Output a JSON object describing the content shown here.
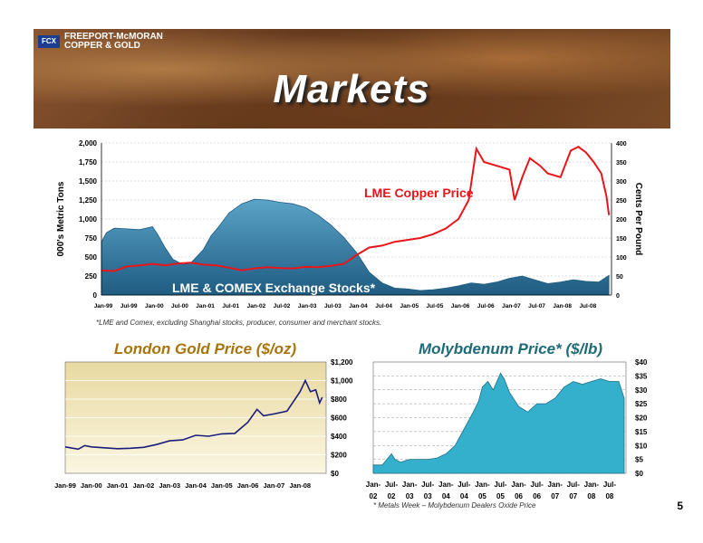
{
  "logo": {
    "mark": "FCX",
    "line1": "FREEPORT-McMORAN",
    "line2": "COPPER & GOLD"
  },
  "page_title": "Markets",
  "footnote_top": "*LME and Comex, excluding Shanghai stocks, producer, consumer and merchant stocks.",
  "footnote_moly": "* Metals Week – Molybdenum Dealers Oxide Price",
  "page_number": "5",
  "colors": {
    "stocks": "#1f5c82",
    "stocks_light": "#5ba3c8",
    "copper": "#e8151b",
    "gold_line": "#1c1c7a",
    "gold_bg_top": "#e8d9a0",
    "gold_bg_bottom": "#fbf6e2",
    "moly": "#34b0cc",
    "gold_title": "#a8740c",
    "moly_title": "#1e6b78"
  },
  "chart_data": [
    {
      "type": "area",
      "name": "copper_markets",
      "ylabel": "000's Metric Tons",
      "y2label": "Cents Per Pound",
      "ylim": [
        0,
        2000
      ],
      "y2lim": [
        0,
        400
      ],
      "y_ticks": [
        "0",
        "250",
        "500",
        "750",
        "1,000",
        "1,250",
        "1,500",
        "1,750",
        "2,000"
      ],
      "y2_ticks": [
        "0",
        "50",
        "100",
        "150",
        "200",
        "250",
        "300",
        "350",
        "400"
      ],
      "x_ticks": [
        "Jan-99",
        "Jul-99",
        "Jan-00",
        "Jul-00",
        "Jan-01",
        "Jul-01",
        "Jan-02",
        "Jul-02",
        "Jan-03",
        "Jul-03",
        "Jan-04",
        "Jul-04",
        "Jan-05",
        "Jul-05",
        "Jan-06",
        "Jul-06",
        "Jan-07",
        "Jul-07",
        "Jan-08",
        "Jul-08"
      ],
      "grid": true,
      "series": [
        {
          "name": "LME & COMEX Exchange Stocks*",
          "axis": "left",
          "type": "area",
          "x": [
            1999.0,
            1999.1,
            1999.25,
            1999.5,
            1999.75,
            2000.0,
            2000.1,
            2000.25,
            2000.4,
            2000.6,
            2000.75,
            2001.0,
            2001.15,
            2001.3,
            2001.5,
            2001.75,
            2002.0,
            2002.25,
            2002.5,
            2002.75,
            2003.0,
            2003.25,
            2003.5,
            2003.75,
            2004.0,
            2004.25,
            2004.5,
            2004.75,
            2005.0,
            2005.25,
            2005.5,
            2005.75,
            2006.0,
            2006.25,
            2006.5,
            2006.75,
            2007.0,
            2007.25,
            2007.5,
            2007.75,
            2008.0,
            2008.25,
            2008.5,
            2008.75,
            2008.95
          ],
          "values": [
            700,
            820,
            880,
            870,
            860,
            900,
            800,
            620,
            470,
            400,
            420,
            600,
            780,
            900,
            1080,
            1200,
            1260,
            1250,
            1220,
            1200,
            1150,
            1050,
            920,
            760,
            560,
            300,
            160,
            90,
            80,
            60,
            70,
            90,
            120,
            160,
            140,
            170,
            220,
            250,
            200,
            150,
            170,
            200,
            180,
            170,
            260
          ]
        },
        {
          "name": "LME Copper Price",
          "axis": "right",
          "type": "line",
          "x": [
            1999.0,
            1999.25,
            1999.5,
            1999.75,
            2000.0,
            2000.25,
            2000.5,
            2000.75,
            2001.0,
            2001.25,
            2001.5,
            2001.75,
            2002.0,
            2002.25,
            2002.5,
            2002.75,
            2003.0,
            2003.25,
            2003.5,
            2003.75,
            2004.0,
            2004.25,
            2004.5,
            2004.75,
            2005.0,
            2005.25,
            2005.5,
            2005.75,
            2006.0,
            2006.2,
            2006.35,
            2006.5,
            2006.75,
            2007.0,
            2007.1,
            2007.25,
            2007.4,
            2007.6,
            2007.75,
            2008.0,
            2008.2,
            2008.35,
            2008.5,
            2008.65,
            2008.8,
            2008.9,
            2008.95
          ],
          "values": [
            65,
            63,
            75,
            78,
            82,
            78,
            83,
            85,
            80,
            78,
            72,
            65,
            70,
            73,
            71,
            70,
            74,
            73,
            77,
            82,
            105,
            125,
            130,
            140,
            145,
            150,
            160,
            175,
            200,
            250,
            385,
            350,
            340,
            330,
            250,
            310,
            360,
            340,
            320,
            310,
            380,
            390,
            375,
            350,
            320,
            260,
            210
          ]
        }
      ],
      "annotations": [
        "LME Copper Price",
        "LME & COMEX Exchange Stocks*"
      ]
    },
    {
      "type": "line",
      "name": "gold",
      "title": "London Gold Price ($/oz)",
      "ylim": [
        0,
        1200
      ],
      "y_ticks": [
        "$0",
        "$200",
        "$400",
        "$600",
        "$800",
        "$1,000",
        "$1,200"
      ],
      "x_ticks": [
        "Jan-99",
        "Jan-00",
        "Jan-01",
        "Jan-02",
        "Jan-03",
        "Jan-04",
        "Jan-05",
        "Jan-06",
        "Jan-07",
        "Jan-08"
      ],
      "grid": true,
      "x": [
        1999.0,
        1999.5,
        1999.75,
        2000.0,
        2000.5,
        2001.0,
        2001.5,
        2002.0,
        2002.5,
        2003.0,
        2003.5,
        2004.0,
        2004.5,
        2005.0,
        2005.5,
        2006.0,
        2006.35,
        2006.6,
        2007.0,
        2007.5,
        2008.0,
        2008.2,
        2008.4,
        2008.6,
        2008.75,
        2008.85
      ],
      "values": [
        285,
        260,
        300,
        285,
        275,
        265,
        270,
        280,
        310,
        350,
        360,
        410,
        400,
        425,
        430,
        550,
        690,
        620,
        640,
        670,
        880,
        1000,
        880,
        900,
        760,
        820
      ]
    },
    {
      "type": "area",
      "name": "molybdenum",
      "title": "Molybdenum Price* ($/lb)",
      "ylim": [
        0,
        40
      ],
      "y_ticks": [
        "$0",
        "$5",
        "$10",
        "$15",
        "$20",
        "$25",
        "$30",
        "$35",
        "$40"
      ],
      "x_ticks": [
        "Jan-02",
        "Jul-02",
        "Jan-03",
        "Jul-03",
        "Jan-04",
        "Jul-04",
        "Jan-05",
        "Jul-05",
        "Jan-06",
        "Jul-06",
        "Jan-07",
        "Jul-07",
        "Jan-08",
        "Jul-08"
      ],
      "grid": true,
      "x": [
        2002.0,
        2002.25,
        2002.5,
        2002.6,
        2002.75,
        2003.0,
        2003.25,
        2003.5,
        2003.75,
        2004.0,
        2004.25,
        2004.5,
        2004.75,
        2004.9,
        2005.0,
        2005.15,
        2005.3,
        2005.5,
        2005.6,
        2005.75,
        2006.0,
        2006.25,
        2006.5,
        2006.75,
        2007.0,
        2007.25,
        2007.5,
        2007.75,
        2008.0,
        2008.25,
        2008.5,
        2008.75,
        2008.9
      ],
      "values": [
        3,
        3,
        7,
        5,
        4,
        5,
        5,
        5,
        5.5,
        7,
        10,
        16,
        22,
        26,
        31,
        33,
        30,
        36,
        34,
        29,
        24,
        22,
        25,
        25,
        27,
        31,
        33,
        32,
        33,
        34,
        33,
        33,
        27
      ]
    }
  ]
}
